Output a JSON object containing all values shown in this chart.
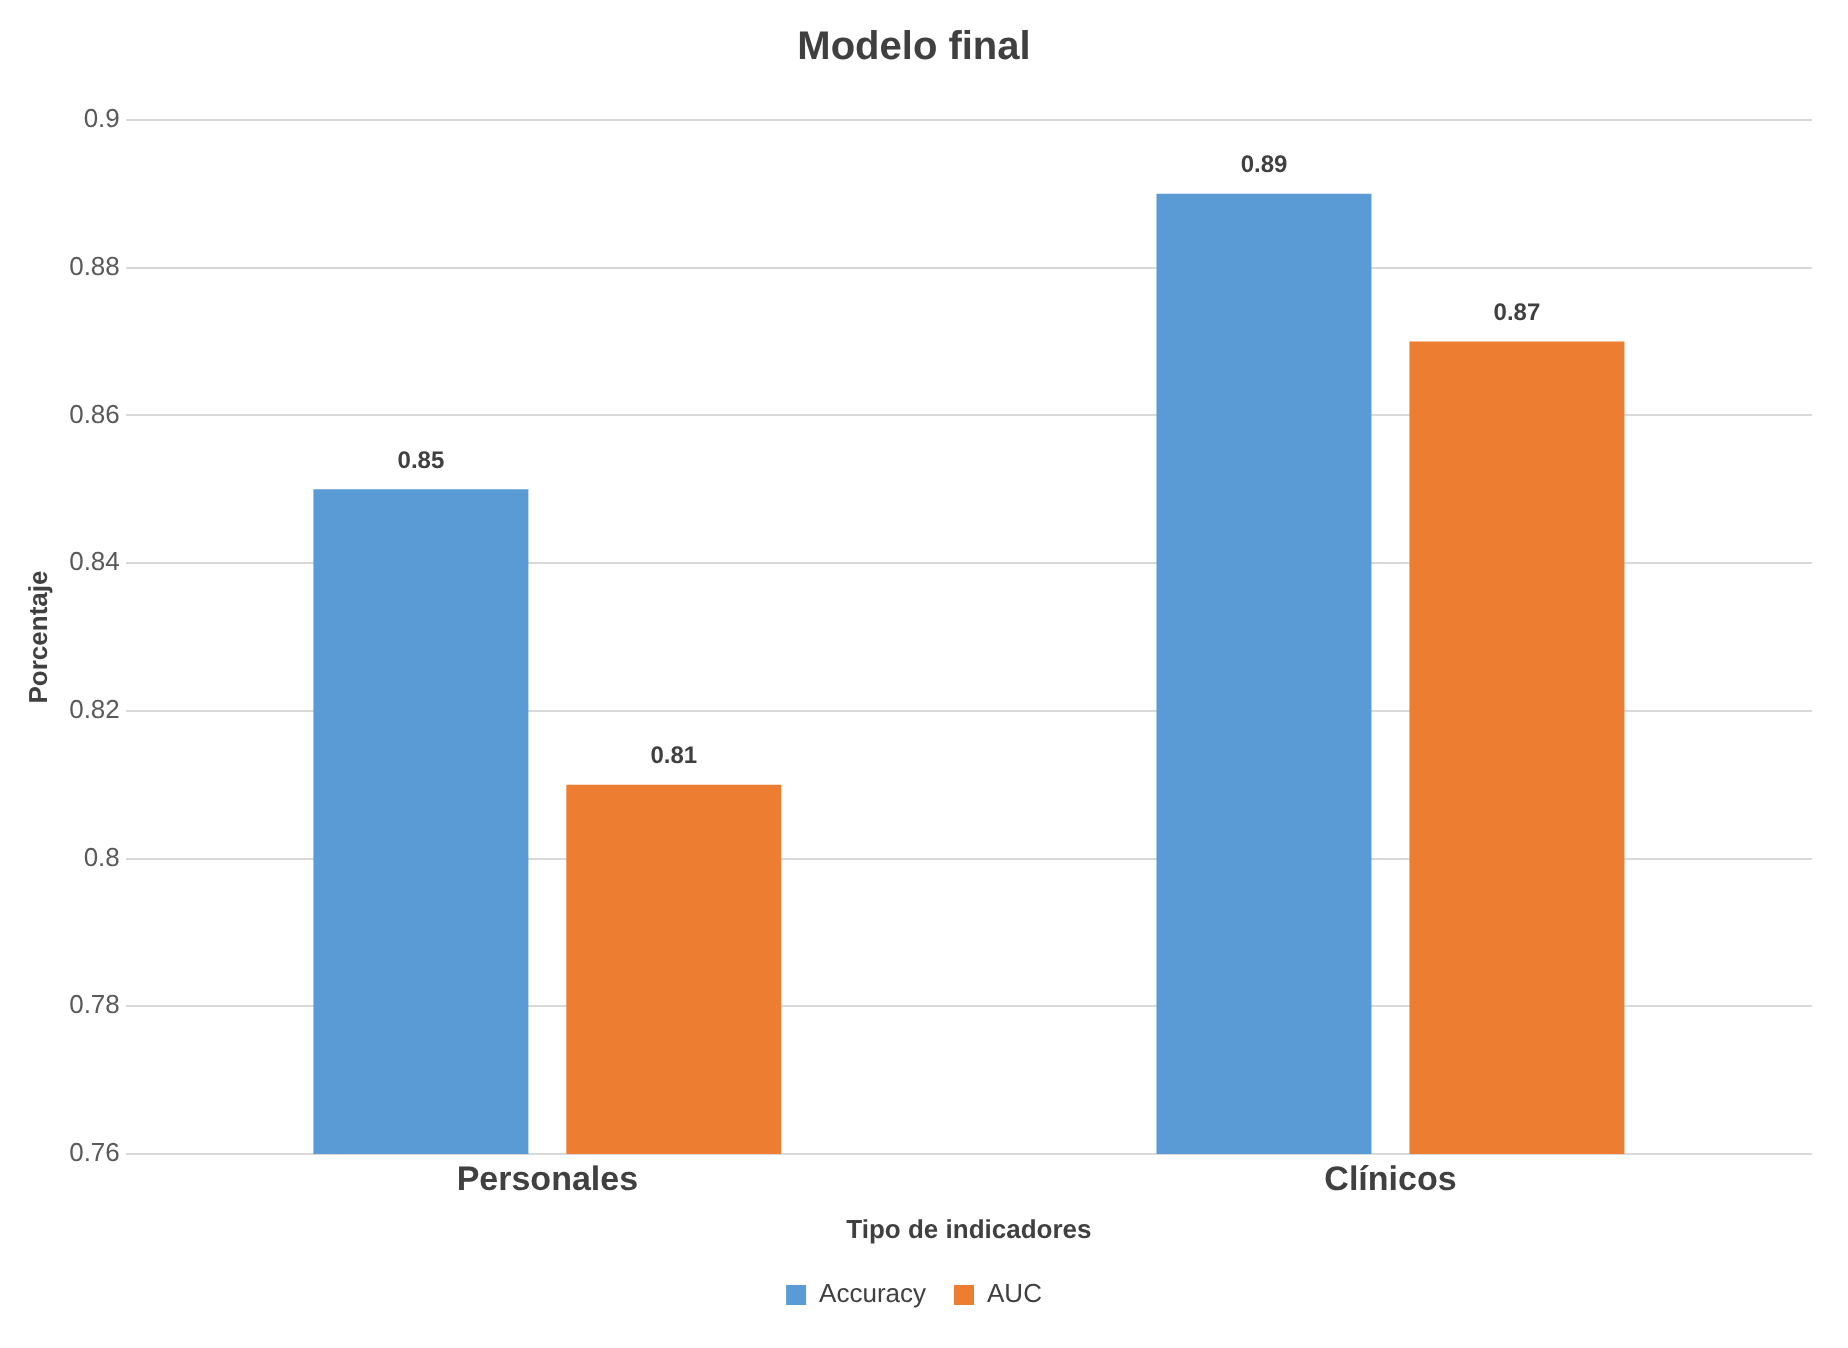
{
  "chart_data": {
    "type": "bar",
    "title": "Modelo final",
    "xlabel": "Tipo de indicadores",
    "ylabel": "Porcentaje",
    "categories": [
      "Personales",
      "Clínicos"
    ],
    "series": [
      {
        "name": "Accuracy",
        "color": "#5b9bd5",
        "values": [
          0.85,
          0.89
        ]
      },
      {
        "name": "AUC",
        "color": "#ed7d31",
        "values": [
          0.81,
          0.87
        ]
      }
    ],
    "ylim": [
      0.76,
      0.9
    ],
    "yticks": [
      0.76,
      0.78,
      0.8,
      0.82,
      0.84,
      0.86,
      0.88,
      0.9
    ],
    "grid": "y",
    "legend": "bottom",
    "data_labels": true
  }
}
